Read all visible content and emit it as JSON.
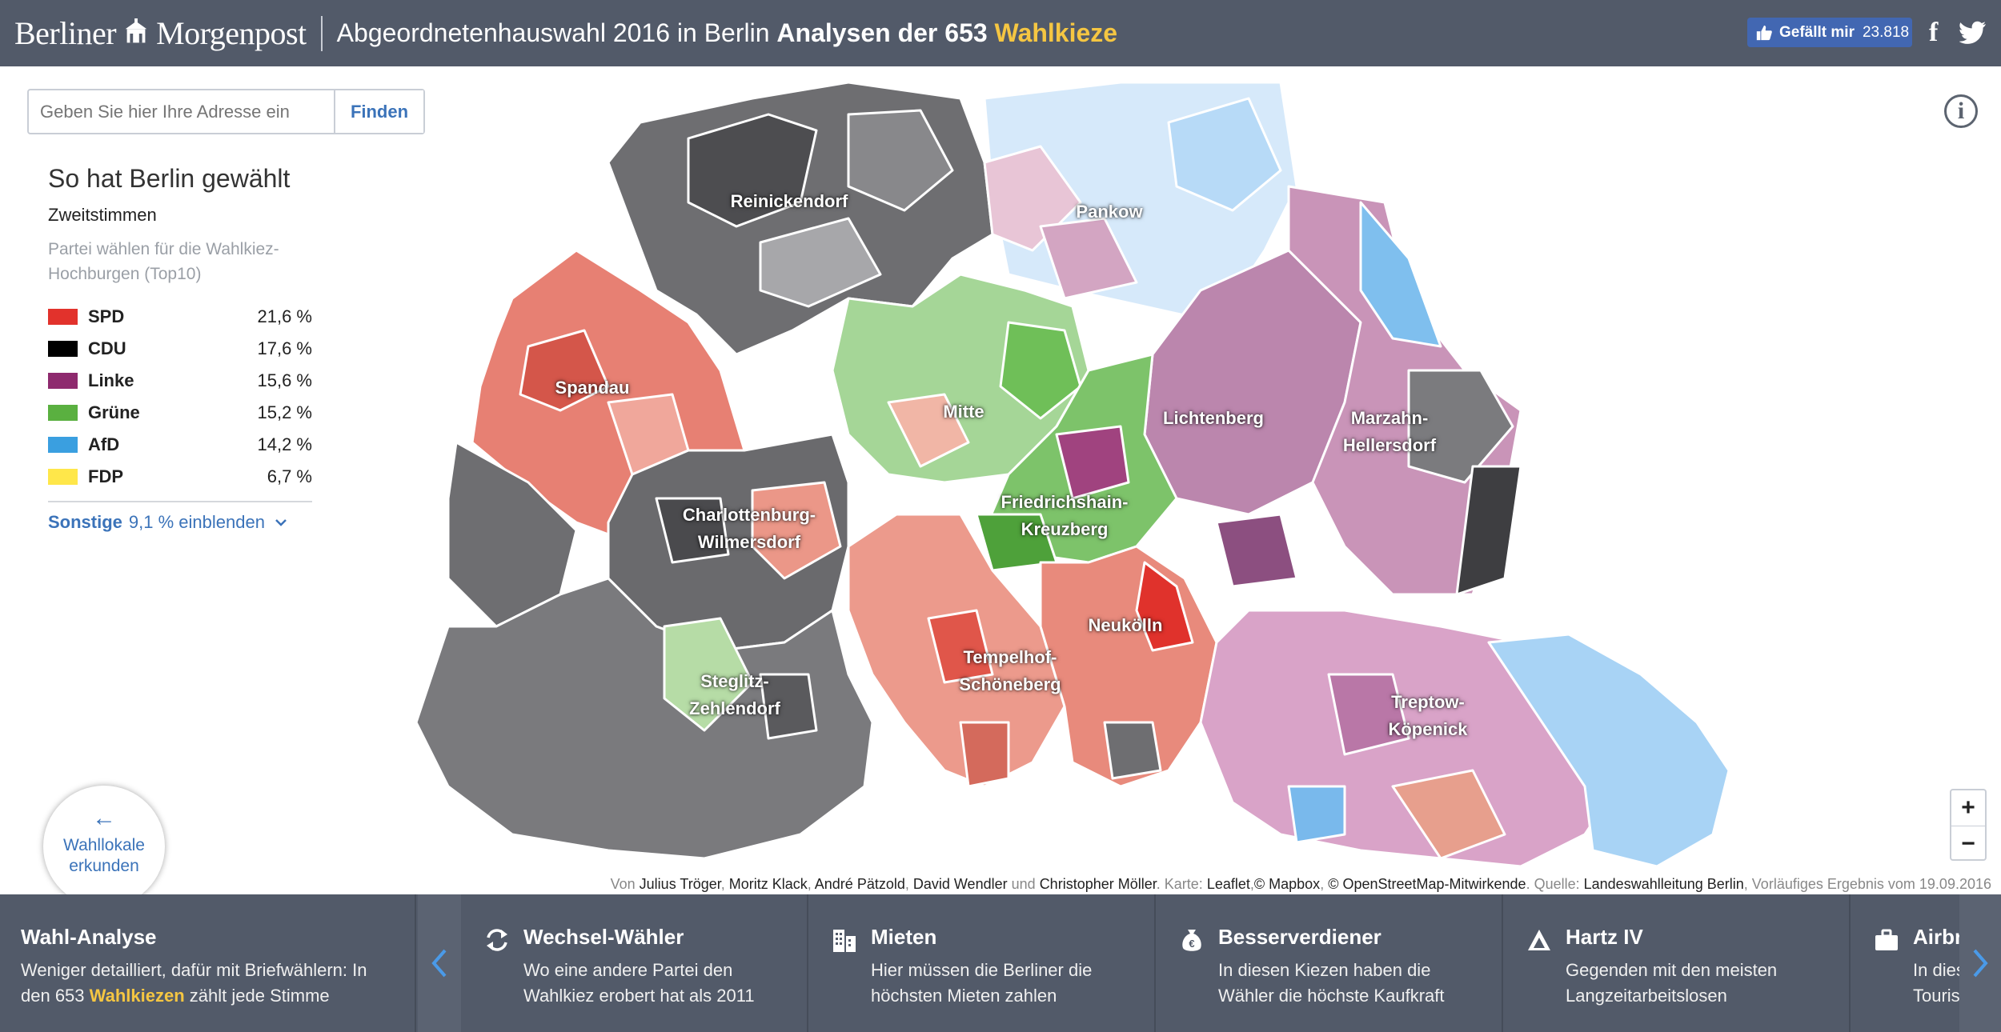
{
  "header": {
    "logo_left": "Berliner",
    "logo_right": "Morgenpost",
    "title_light": "Abgeordnetenhauswahl 2016 in Berlin",
    "title_bold": "Analysen der 653",
    "title_accent": "Wahlkieze",
    "fb_like_label": "Gefällt mir",
    "fb_like_count": "23.818",
    "share_fb_icon": "facebook-icon",
    "share_tw_icon": "twitter-icon"
  },
  "search": {
    "placeholder": "Geben Sie hier Ihre Adresse ein",
    "button": "Finden"
  },
  "legend": {
    "title": "So hat Berlin gewählt",
    "subtitle": "Zweitstimmen",
    "hint": "Partei wählen für die Wahlkiez-Hochburgen (Top10)",
    "parties": [
      {
        "name": "SPD",
        "value": "21,6 %",
        "color": "#e2322c"
      },
      {
        "name": "CDU",
        "value": "17,6 %",
        "color": "#000000"
      },
      {
        "name": "Linke",
        "value": "15,6 %",
        "color": "#8e2a6e"
      },
      {
        "name": "Grüne",
        "value": "15,2 %",
        "color": "#5ab040"
      },
      {
        "name": "AfD",
        "value": "14,2 %",
        "color": "#3a9fe0"
      },
      {
        "name": "FDP",
        "value": "6,7 %",
        "color": "#ffe74a"
      }
    ],
    "others_label": "Sonstige",
    "others_value": "9,1 % einblenden"
  },
  "map": {
    "districts": [
      {
        "name": "Reinickendorf"
      },
      {
        "name": "Pankow"
      },
      {
        "name": "Spandau"
      },
      {
        "name": "Mitte"
      },
      {
        "name": "Lichtenberg"
      },
      {
        "name": "Marzahn-\nHellersdorf"
      },
      {
        "name": "Friedrichshain-\nKreuzberg"
      },
      {
        "name": "Charlottenburg-\nWilmersdorf"
      },
      {
        "name": "Neukölln"
      },
      {
        "name": "Tempelhof-\nSchöneberg"
      },
      {
        "name": "Steglitz-\nZehlendorf"
      },
      {
        "name": "Treptow-\nKöpenick"
      }
    ],
    "info_icon": "info-icon",
    "zoom_in": "+",
    "zoom_out": "−"
  },
  "wahllokale": {
    "arrow": "←",
    "label": "Wahllokale erkunden"
  },
  "attribution": {
    "von": "Von",
    "authors": [
      "Julius Tröger",
      "Moritz Klack",
      "André Pätzold",
      "David Wendler"
    ],
    "und": "und",
    "last_author": "Christopher Möller",
    "karte": "Karte:",
    "leaflet": "Leaflet",
    "mapbox": "© Mapbox",
    "osm": "© OpenStreetMap-Mitwirkende",
    "quelle": "Quelle:",
    "source": "Landeswahlleitung Berlin",
    "note": "Vorläufiges Ergebnis vom 19.09.2016"
  },
  "bottom": {
    "main_title": "Wahl-Analyse",
    "main_text_1": "Weniger detailliert, dafür mit Briefwählern: In den 653",
    "main_text_accent": "Wahlkiezen",
    "main_text_2": "zählt jede Stimme",
    "cards": [
      {
        "icon": "refresh-icon",
        "title": "Wechsel-Wähler",
        "line1": "Wo eine andere Partei den",
        "line2": "Wahlkiez erobert hat als 2011"
      },
      {
        "icon": "building-icon",
        "title": "Mieten",
        "line1": "Hier müssen die Berliner die",
        "line2": "höchsten Mieten zahlen"
      },
      {
        "icon": "money-bag-icon",
        "title": "Besserverdiener",
        "line1": "In diesen Kiezen haben die",
        "line2": "Wähler die höchste Kaufkraft"
      },
      {
        "icon": "hartz-icon",
        "title": "Hartz IV",
        "line1": "Gegenden mit den meisten",
        "line2": "Langzeitarbeitslosen"
      },
      {
        "icon": "briefcase-icon",
        "title": "Airbnb",
        "line1": "In diesen",
        "line2": "Touristen"
      }
    ]
  }
}
